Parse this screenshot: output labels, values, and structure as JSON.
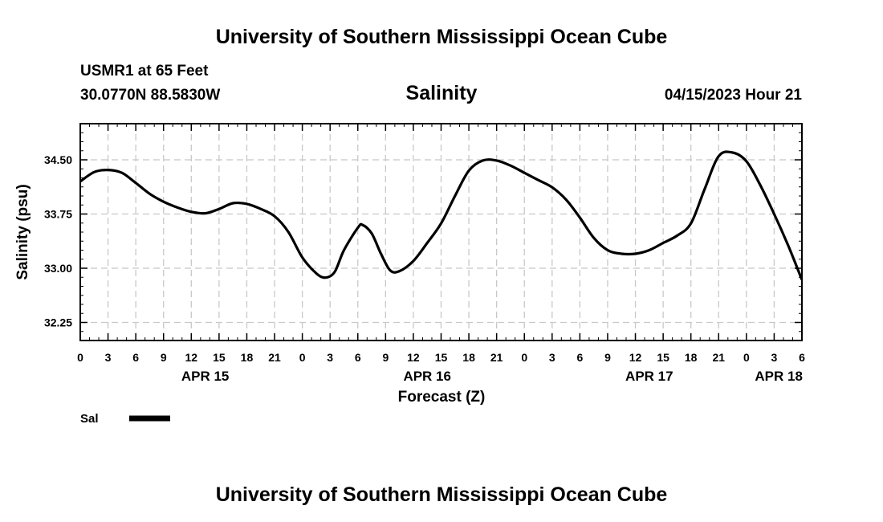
{
  "header": {
    "title": "University of Southern Mississippi Ocean Cube",
    "station": "USMR1 at 65 Feet",
    "coords": "30.0770N  88.5830W",
    "timestamp": "04/15/2023 Hour 21",
    "footer_title": "University of Southern Mississippi Ocean Cube"
  },
  "legend": {
    "label": "Sal",
    "color": "#000000"
  },
  "chart_data": {
    "type": "line",
    "title": "Salinity",
    "xlabel": "Forecast (Z)",
    "ylabel": "Salinity (psu)",
    "x_range_hours": [
      0,
      78
    ],
    "ylim": [
      32.0,
      35.0
    ],
    "y_ticks": [
      32.25,
      33.0,
      33.75,
      34.5
    ],
    "y_tick_labels": [
      "32.25",
      "33.00",
      "33.75",
      "34.50"
    ],
    "x_ticks": [
      0,
      3,
      6,
      9,
      12,
      15,
      18,
      21,
      24,
      27,
      30,
      33,
      36,
      39,
      42,
      45,
      48,
      51,
      54,
      57,
      60,
      63,
      66,
      69,
      72,
      75,
      78
    ],
    "x_tick_labels": [
      "0",
      "3",
      "6",
      "9",
      "12",
      "15",
      "18",
      "21",
      "0",
      "3",
      "6",
      "9",
      "12",
      "15",
      "18",
      "21",
      "0",
      "3",
      "6",
      "9",
      "12",
      "15",
      "18",
      "21",
      "0",
      "3",
      "6"
    ],
    "date_labels": [
      {
        "hour": 13.5,
        "label": "APR 15"
      },
      {
        "hour": 37.5,
        "label": "APR 16"
      },
      {
        "hour": 61.5,
        "label": "APR 17"
      },
      {
        "hour": 75.5,
        "label": "APR 18"
      }
    ],
    "grid": true,
    "series": [
      {
        "name": "Sal",
        "x": [
          0,
          1.5,
          3,
          4.5,
          6,
          7.5,
          9,
          10.5,
          12,
          13.5,
          15,
          16.5,
          18,
          19.5,
          21,
          22.5,
          24,
          25.5,
          26.5,
          27.5,
          28.5,
          30,
          30.5,
          31.5,
          32.5,
          33.5,
          34.5,
          36,
          37.5,
          39,
          40.5,
          42,
          43.5,
          45,
          46.5,
          48,
          49.5,
          51,
          52.5,
          54,
          55.5,
          57,
          58.5,
          60,
          61.5,
          63,
          64.5,
          66,
          67.5,
          69,
          70.5,
          72,
          73.5,
          75,
          76.5,
          78
        ],
        "y": [
          34.2,
          34.33,
          34.36,
          34.32,
          34.18,
          34.03,
          33.92,
          33.84,
          33.78,
          33.76,
          33.82,
          33.9,
          33.89,
          33.82,
          33.72,
          33.5,
          33.15,
          32.93,
          32.87,
          32.95,
          33.25,
          33.56,
          33.6,
          33.48,
          33.2,
          32.97,
          32.96,
          33.1,
          33.35,
          33.62,
          34.0,
          34.35,
          34.49,
          34.49,
          34.42,
          34.32,
          34.22,
          34.12,
          33.95,
          33.7,
          33.42,
          33.25,
          33.2,
          33.2,
          33.25,
          33.35,
          33.45,
          33.62,
          34.1,
          34.55,
          34.6,
          34.48,
          34.15,
          33.75,
          33.32,
          32.84
        ]
      }
    ]
  }
}
